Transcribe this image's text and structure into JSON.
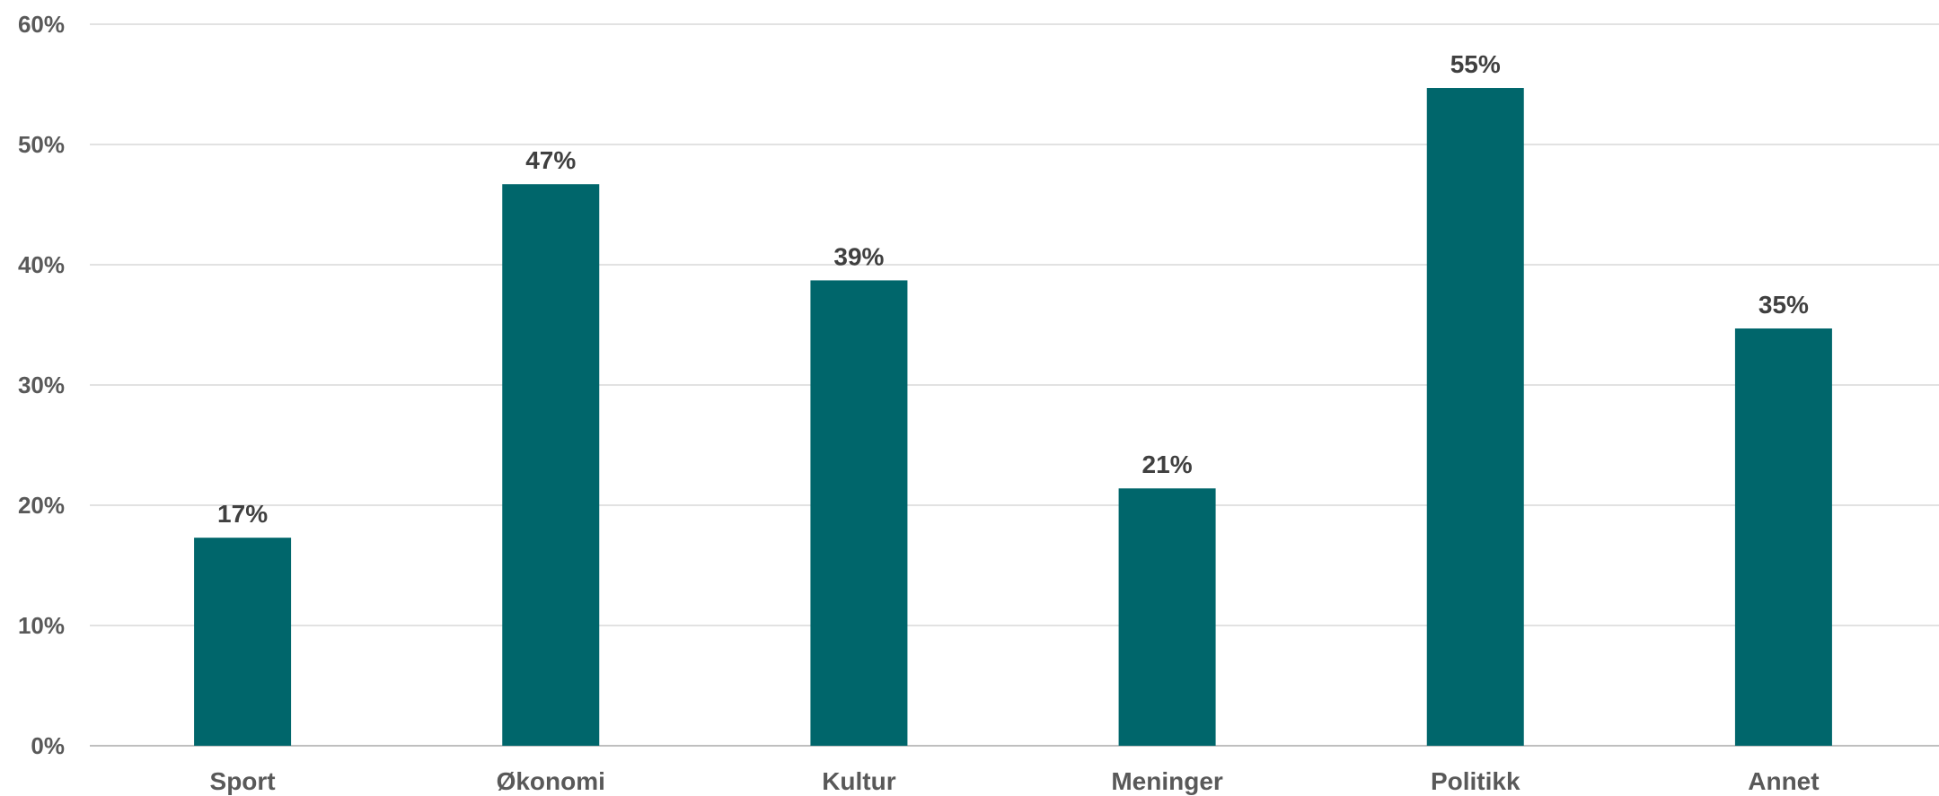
{
  "chart_data": {
    "type": "bar",
    "categories": [
      "Sport",
      "Økonomi",
      "Kultur",
      "Meninger",
      "Politikk",
      "Annet"
    ],
    "values": [
      17.3,
      46.7,
      38.7,
      21.4,
      54.7,
      34.7
    ],
    "data_labels": [
      "17%",
      "47%",
      "39%",
      "21%",
      "55%",
      "35%"
    ],
    "y_ticks": [
      "0%",
      "10%",
      "20%",
      "30%",
      "40%",
      "50%",
      "60%"
    ],
    "ylim": [
      0,
      60
    ],
    "grid": true,
    "legend": "none",
    "bar_color": "#00666b"
  }
}
